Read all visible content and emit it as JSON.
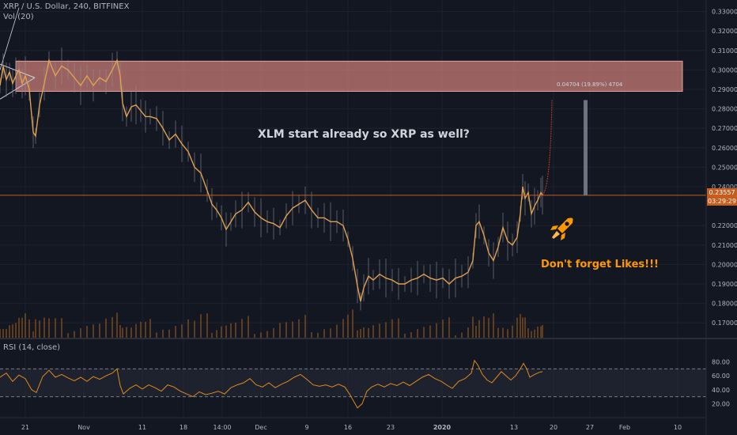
{
  "header": {
    "symbol_line": "XRP / U.S. Dollar, 240, BITFINEX",
    "volume_label": "Vol (20)",
    "rsi_label": "RSI (14, close)"
  },
  "annotations": {
    "main_text": "XLM start already so XRP as well?",
    "likes_text": "Don't forget Likes!!!",
    "measure_text": "0.04704 (19.89%) 4704"
  },
  "price_tags": {
    "last_price": "0.23557",
    "countdown": "03:29:29"
  },
  "icons": {
    "rocket": "rocket-icon"
  },
  "colors": {
    "background": "#131722",
    "candle": "#e0a050",
    "wick": "#8a8e98",
    "resistance_zone": "#d9867f",
    "price_line": "#c65d1e",
    "rsi_line": "#e08a1a",
    "projection": "#c0392b",
    "measure_bar": "#6d7281",
    "grid": "#1e222d",
    "accent_orange": "#ff9800"
  },
  "chart_data": {
    "type": "line",
    "symbol": "XRP / U.S. Dollar",
    "timeframe": "240",
    "exchange": "BITFINEX",
    "y_axis_ticks": [
      "0.33000",
      "0.32000",
      "0.31000",
      "0.30000",
      "0.29000",
      "0.28000",
      "0.27000",
      "0.26000",
      "0.25000",
      "0.24000",
      "0.22000",
      "0.21000",
      "0.20000",
      "0.19000",
      "0.18000",
      "0.17000"
    ],
    "ylim": [
      0.1648,
      0.3335
    ],
    "x_axis_ticks": [
      "21",
      "Nov",
      "11",
      "18",
      "14:00",
      "Dec",
      "9",
      "16",
      "23",
      "2020",
      "13",
      "20",
      "27",
      "Feb",
      "10"
    ],
    "rsi_ticks": [
      "80.00",
      "60.00",
      "40.00",
      "20.00"
    ],
    "rsi_range": [
      0,
      100
    ],
    "rsi_bands": [
      70,
      30
    ],
    "resistance_zone": [
      0.289,
      0.3045
    ],
    "last_price": 0.23557,
    "projection_target": 0.2845,
    "price_series": [
      {
        "x": 0,
        "y": 0.292
      },
      {
        "x": 4,
        "y": 0.302
      },
      {
        "x": 8,
        "y": 0.295
      },
      {
        "x": 12,
        "y": 0.299
      },
      {
        "x": 16,
        "y": 0.293
      },
      {
        "x": 20,
        "y": 0.297
      },
      {
        "x": 24,
        "y": 0.3
      },
      {
        "x": 28,
        "y": 0.293
      },
      {
        "x": 32,
        "y": 0.297
      },
      {
        "x": 37,
        "y": 0.29
      },
      {
        "x": 42,
        "y": 0.268
      },
      {
        "x": 45,
        "y": 0.266
      },
      {
        "x": 50,
        "y": 0.282
      },
      {
        "x": 56,
        "y": 0.293
      },
      {
        "x": 62,
        "y": 0.305
      },
      {
        "x": 70,
        "y": 0.297
      },
      {
        "x": 78,
        "y": 0.302
      },
      {
        "x": 86,
        "y": 0.3
      },
      {
        "x": 94,
        "y": 0.296
      },
      {
        "x": 102,
        "y": 0.292
      },
      {
        "x": 110,
        "y": 0.297
      },
      {
        "x": 118,
        "y": 0.292
      },
      {
        "x": 126,
        "y": 0.296
      },
      {
        "x": 134,
        "y": 0.294
      },
      {
        "x": 142,
        "y": 0.3
      },
      {
        "x": 148,
        "y": 0.305
      },
      {
        "x": 152,
        "y": 0.297
      },
      {
        "x": 155,
        "y": 0.283
      },
      {
        "x": 160,
        "y": 0.276
      },
      {
        "x": 166,
        "y": 0.281
      },
      {
        "x": 172,
        "y": 0.282
      },
      {
        "x": 178,
        "y": 0.279
      },
      {
        "x": 184,
        "y": 0.276
      },
      {
        "x": 190,
        "y": 0.276
      },
      {
        "x": 198,
        "y": 0.275
      },
      {
        "x": 206,
        "y": 0.27
      },
      {
        "x": 214,
        "y": 0.264
      },
      {
        "x": 222,
        "y": 0.267
      },
      {
        "x": 230,
        "y": 0.262
      },
      {
        "x": 238,
        "y": 0.258
      },
      {
        "x": 246,
        "y": 0.25
      },
      {
        "x": 254,
        "y": 0.247
      },
      {
        "x": 262,
        "y": 0.238
      },
      {
        "x": 268,
        "y": 0.231
      },
      {
        "x": 274,
        "y": 0.228
      },
      {
        "x": 280,
        "y": 0.224
      },
      {
        "x": 286,
        "y": 0.218
      },
      {
        "x": 292,
        "y": 0.222
      },
      {
        "x": 298,
        "y": 0.226
      },
      {
        "x": 306,
        "y": 0.228
      },
      {
        "x": 314,
        "y": 0.232
      },
      {
        "x": 322,
        "y": 0.227
      },
      {
        "x": 330,
        "y": 0.224
      },
      {
        "x": 338,
        "y": 0.222
      },
      {
        "x": 346,
        "y": 0.221
      },
      {
        "x": 354,
        "y": 0.219
      },
      {
        "x": 362,
        "y": 0.225
      },
      {
        "x": 370,
        "y": 0.229
      },
      {
        "x": 378,
        "y": 0.231
      },
      {
        "x": 386,
        "y": 0.233
      },
      {
        "x": 394,
        "y": 0.228
      },
      {
        "x": 402,
        "y": 0.224
      },
      {
        "x": 410,
        "y": 0.224
      },
      {
        "x": 418,
        "y": 0.222
      },
      {
        "x": 426,
        "y": 0.222
      },
      {
        "x": 434,
        "y": 0.22
      },
      {
        "x": 440,
        "y": 0.213
      },
      {
        "x": 446,
        "y": 0.203
      },
      {
        "x": 452,
        "y": 0.189
      },
      {
        "x": 456,
        "y": 0.181
      },
      {
        "x": 460,
        "y": 0.188
      },
      {
        "x": 466,
        "y": 0.194
      },
      {
        "x": 472,
        "y": 0.192
      },
      {
        "x": 480,
        "y": 0.195
      },
      {
        "x": 488,
        "y": 0.193
      },
      {
        "x": 496,
        "y": 0.192
      },
      {
        "x": 504,
        "y": 0.19
      },
      {
        "x": 512,
        "y": 0.19
      },
      {
        "x": 520,
        "y": 0.192
      },
      {
        "x": 528,
        "y": 0.193
      },
      {
        "x": 536,
        "y": 0.195
      },
      {
        "x": 544,
        "y": 0.193
      },
      {
        "x": 552,
        "y": 0.192
      },
      {
        "x": 560,
        "y": 0.193
      },
      {
        "x": 568,
        "y": 0.19
      },
      {
        "x": 576,
        "y": 0.193
      },
      {
        "x": 584,
        "y": 0.194
      },
      {
        "x": 592,
        "y": 0.196
      },
      {
        "x": 598,
        "y": 0.202
      },
      {
        "x": 602,
        "y": 0.22
      },
      {
        "x": 606,
        "y": 0.222
      },
      {
        "x": 612,
        "y": 0.215
      },
      {
        "x": 618,
        "y": 0.206
      },
      {
        "x": 624,
        "y": 0.202
      },
      {
        "x": 630,
        "y": 0.209
      },
      {
        "x": 636,
        "y": 0.219
      },
      {
        "x": 642,
        "y": 0.212
      },
      {
        "x": 648,
        "y": 0.21
      },
      {
        "x": 654,
        "y": 0.214
      },
      {
        "x": 658,
        "y": 0.226
      },
      {
        "x": 661,
        "y": 0.24
      },
      {
        "x": 664,
        "y": 0.234
      },
      {
        "x": 668,
        "y": 0.237
      },
      {
        "x": 672,
        "y": 0.226
      },
      {
        "x": 676,
        "y": 0.23
      },
      {
        "x": 680,
        "y": 0.233
      },
      {
        "x": 684,
        "y": 0.237
      },
      {
        "x": 686,
        "y": 0.2356
      }
    ],
    "rsi_series": [
      {
        "x": 0,
        "y": 58
      },
      {
        "x": 8,
        "y": 64
      },
      {
        "x": 16,
        "y": 52
      },
      {
        "x": 24,
        "y": 61
      },
      {
        "x": 32,
        "y": 56
      },
      {
        "x": 40,
        "y": 40
      },
      {
        "x": 46,
        "y": 36
      },
      {
        "x": 54,
        "y": 59
      },
      {
        "x": 62,
        "y": 68
      },
      {
        "x": 70,
        "y": 58
      },
      {
        "x": 78,
        "y": 62
      },
      {
        "x": 86,
        "y": 57
      },
      {
        "x": 94,
        "y": 53
      },
      {
        "x": 102,
        "y": 58
      },
      {
        "x": 110,
        "y": 52
      },
      {
        "x": 118,
        "y": 59
      },
      {
        "x": 126,
        "y": 55
      },
      {
        "x": 134,
        "y": 60
      },
      {
        "x": 142,
        "y": 64
      },
      {
        "x": 148,
        "y": 70
      },
      {
        "x": 152,
        "y": 46
      },
      {
        "x": 156,
        "y": 34
      },
      {
        "x": 164,
        "y": 42
      },
      {
        "x": 172,
        "y": 47
      },
      {
        "x": 180,
        "y": 41
      },
      {
        "x": 188,
        "y": 47
      },
      {
        "x": 196,
        "y": 43
      },
      {
        "x": 204,
        "y": 38
      },
      {
        "x": 212,
        "y": 47
      },
      {
        "x": 220,
        "y": 44
      },
      {
        "x": 228,
        "y": 38
      },
      {
        "x": 236,
        "y": 34
      },
      {
        "x": 244,
        "y": 30
      },
      {
        "x": 252,
        "y": 37
      },
      {
        "x": 260,
        "y": 33
      },
      {
        "x": 268,
        "y": 35
      },
      {
        "x": 276,
        "y": 38
      },
      {
        "x": 284,
        "y": 34
      },
      {
        "x": 292,
        "y": 43
      },
      {
        "x": 300,
        "y": 47
      },
      {
        "x": 308,
        "y": 50
      },
      {
        "x": 316,
        "y": 56
      },
      {
        "x": 324,
        "y": 47
      },
      {
        "x": 332,
        "y": 44
      },
      {
        "x": 340,
        "y": 50
      },
      {
        "x": 348,
        "y": 43
      },
      {
        "x": 356,
        "y": 48
      },
      {
        "x": 364,
        "y": 52
      },
      {
        "x": 372,
        "y": 58
      },
      {
        "x": 380,
        "y": 62
      },
      {
        "x": 388,
        "y": 55
      },
      {
        "x": 396,
        "y": 47
      },
      {
        "x": 404,
        "y": 45
      },
      {
        "x": 412,
        "y": 47
      },
      {
        "x": 420,
        "y": 44
      },
      {
        "x": 428,
        "y": 48
      },
      {
        "x": 436,
        "y": 44
      },
      {
        "x": 442,
        "y": 34
      },
      {
        "x": 448,
        "y": 22
      },
      {
        "x": 452,
        "y": 14
      },
      {
        "x": 458,
        "y": 20
      },
      {
        "x": 464,
        "y": 38
      },
      {
        "x": 470,
        "y": 44
      },
      {
        "x": 478,
        "y": 48
      },
      {
        "x": 486,
        "y": 44
      },
      {
        "x": 494,
        "y": 49
      },
      {
        "x": 502,
        "y": 46
      },
      {
        "x": 510,
        "y": 51
      },
      {
        "x": 518,
        "y": 46
      },
      {
        "x": 526,
        "y": 52
      },
      {
        "x": 534,
        "y": 58
      },
      {
        "x": 542,
        "y": 62
      },
      {
        "x": 550,
        "y": 56
      },
      {
        "x": 558,
        "y": 52
      },
      {
        "x": 566,
        "y": 46
      },
      {
        "x": 572,
        "y": 42
      },
      {
        "x": 580,
        "y": 52
      },
      {
        "x": 588,
        "y": 56
      },
      {
        "x": 596,
        "y": 64
      },
      {
        "x": 600,
        "y": 82
      },
      {
        "x": 604,
        "y": 76
      },
      {
        "x": 610,
        "y": 62
      },
      {
        "x": 616,
        "y": 54
      },
      {
        "x": 622,
        "y": 50
      },
      {
        "x": 628,
        "y": 58
      },
      {
        "x": 634,
        "y": 66
      },
      {
        "x": 640,
        "y": 60
      },
      {
        "x": 646,
        "y": 54
      },
      {
        "x": 652,
        "y": 60
      },
      {
        "x": 658,
        "y": 70
      },
      {
        "x": 662,
        "y": 78
      },
      {
        "x": 666,
        "y": 70
      },
      {
        "x": 670,
        "y": 58
      },
      {
        "x": 676,
        "y": 62
      },
      {
        "x": 682,
        "y": 65
      },
      {
        "x": 686,
        "y": 66
      }
    ]
  }
}
